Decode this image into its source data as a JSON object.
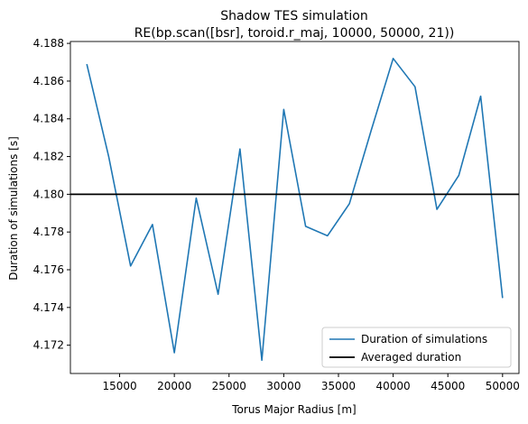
{
  "chart_data": {
    "type": "line",
    "title": "Shadow TES simulation",
    "subtitle": "RE(bp.scan([bsr], toroid.r_maj, 10000, 50000, 21))",
    "xlabel": "Torus Major Radius [m]",
    "ylabel": "Duration of simulations [s]",
    "xlim": [
      10500,
      51500
    ],
    "ylim": [
      4.1705,
      4.1881
    ],
    "xticks": [
      15000,
      20000,
      25000,
      30000,
      35000,
      40000,
      45000,
      50000
    ],
    "xtick_labels": [
      "15000",
      "20000",
      "25000",
      "30000",
      "35000",
      "40000",
      "45000",
      "50000"
    ],
    "yticks": [
      4.172,
      4.174,
      4.176,
      4.178,
      4.18,
      4.182,
      4.184,
      4.186,
      4.188
    ],
    "ytick_labels": [
      "4.172",
      "4.174",
      "4.176",
      "4.178",
      "4.180",
      "4.182",
      "4.184",
      "4.186",
      "4.188"
    ],
    "grid": false,
    "legend_position": "lower-right",
    "series": [
      {
        "name": "Duration of simulations",
        "color": "#1f77b4",
        "x": [
          12000,
          14000,
          16000,
          18000,
          20000,
          22000,
          24000,
          26000,
          28000,
          30000,
          32000,
          34000,
          36000,
          38000,
          40000,
          42000,
          44000,
          46000,
          48000,
          50000
        ],
        "y": [
          4.1869,
          4.182,
          4.1762,
          4.1784,
          4.1716,
          4.1798,
          4.1747,
          4.1824,
          4.1712,
          4.1845,
          4.1783,
          4.1778,
          4.1795,
          4.1834,
          4.1872,
          4.1857,
          4.1792,
          4.181,
          4.1852,
          4.1745
        ]
      }
    ],
    "hlines": [
      {
        "name": "Averaged duration",
        "color": "#000000",
        "y": 4.18
      }
    ]
  }
}
